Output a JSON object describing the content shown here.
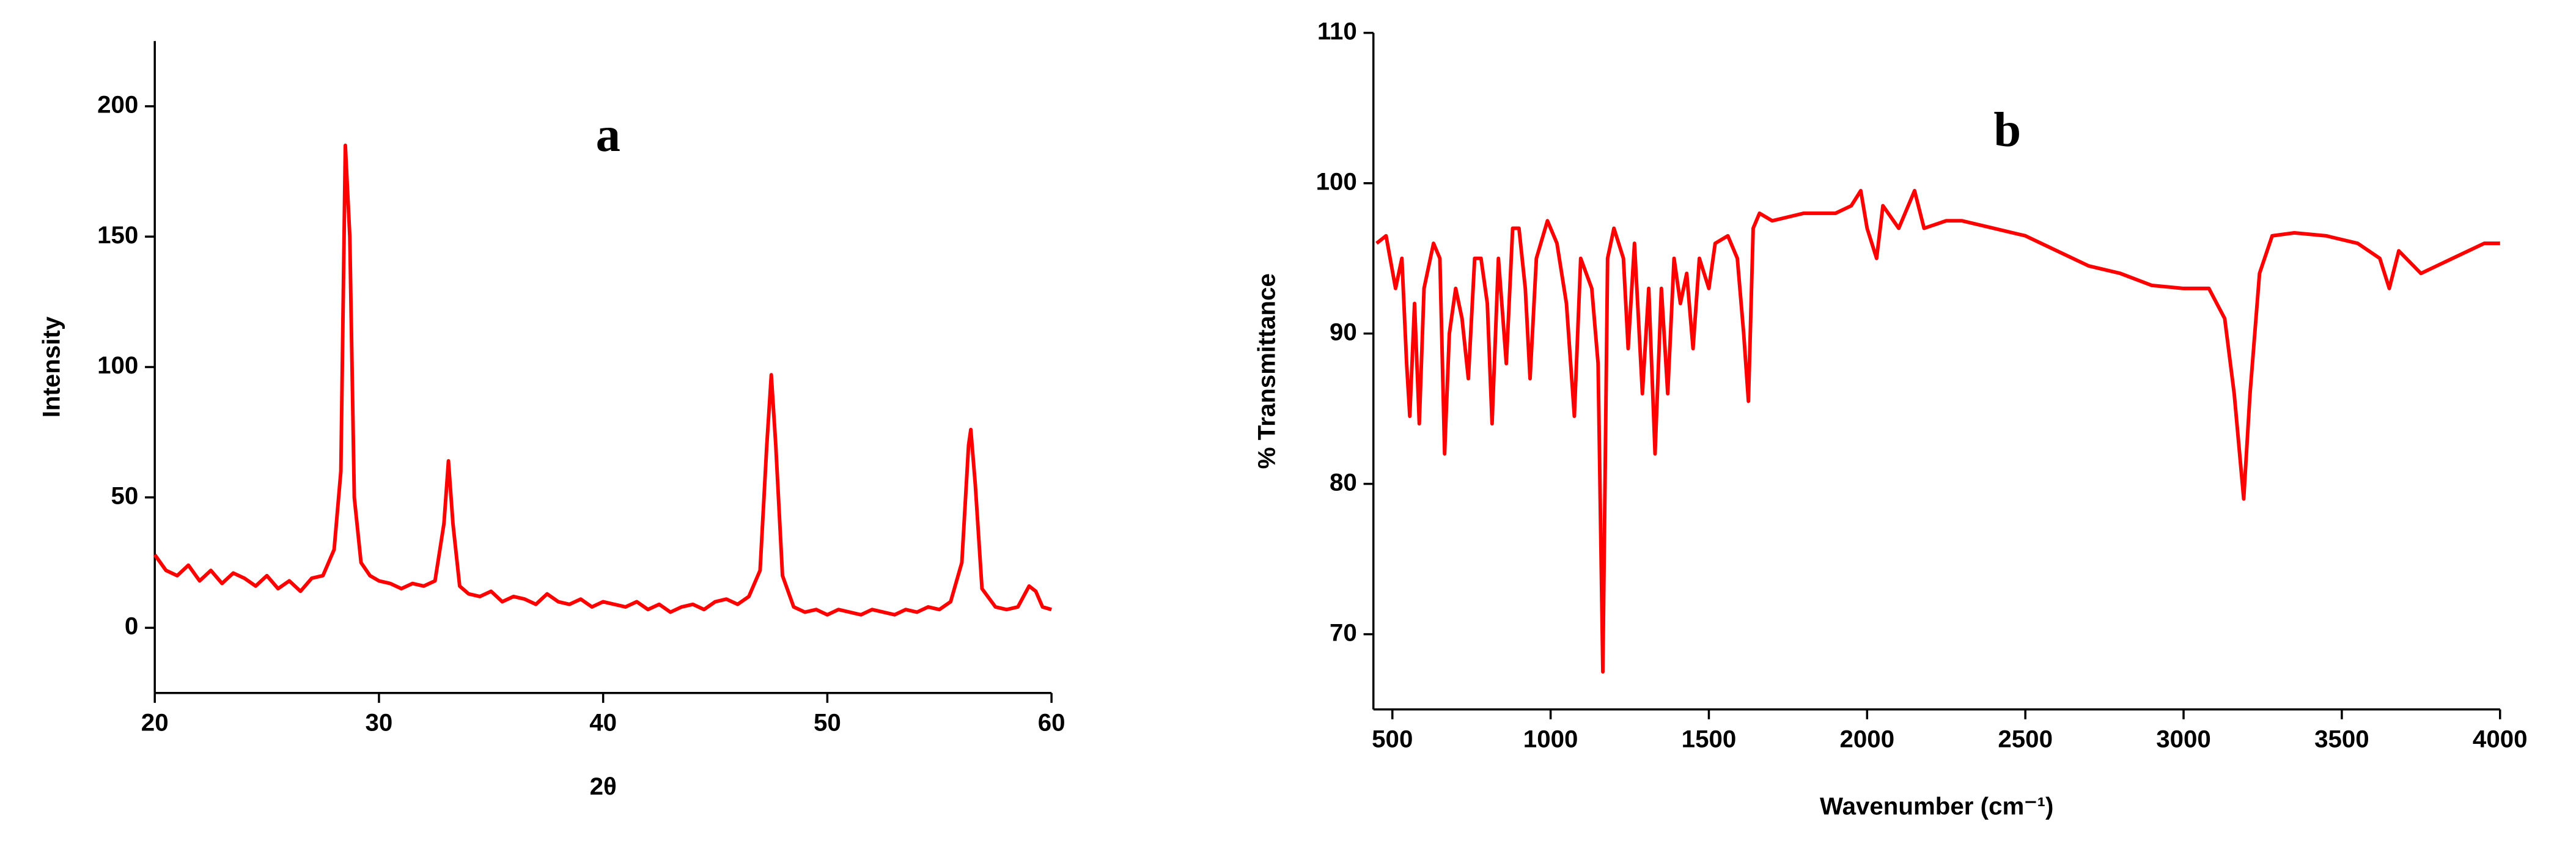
{
  "chart_data": [
    {
      "type": "line",
      "annotation": "a",
      "x_label": "2θ",
      "y_label": "Intensity",
      "xlim": [
        20,
        60
      ],
      "ylim": [
        -25,
        225
      ],
      "xticks": [
        20,
        30,
        40,
        50,
        60
      ],
      "yticks": [
        0,
        50,
        100,
        150,
        200
      ],
      "grid": false,
      "x": [
        20,
        20.5,
        21,
        21.5,
        22,
        22.5,
        23,
        23.5,
        24,
        24.5,
        25,
        25.5,
        26,
        26.5,
        27,
        27.5,
        28,
        28.3,
        28.5,
        28.7,
        28.9,
        29.2,
        29.6,
        30,
        30.5,
        31,
        31.5,
        32,
        32.5,
        32.9,
        33.1,
        33.3,
        33.6,
        34,
        34.5,
        35,
        35.5,
        36,
        36.5,
        37,
        37.5,
        38,
        38.5,
        39,
        39.5,
        40,
        40.5,
        41,
        41.5,
        42,
        42.5,
        43,
        43.5,
        44,
        44.5,
        45,
        45.5,
        46,
        46.5,
        47,
        47.3,
        47.5,
        47.7,
        48,
        48.5,
        49,
        49.5,
        50,
        50.5,
        51,
        51.5,
        52,
        52.5,
        53,
        53.5,
        54,
        54.5,
        55,
        55.5,
        56,
        56.3,
        56.4,
        56.6,
        56.9,
        57.5,
        58,
        58.5,
        59,
        59.3,
        59.6,
        60
      ],
      "series": [
        {
          "color": "#ff0000",
          "values": [
            28,
            22,
            20,
            24,
            18,
            22,
            17,
            21,
            19,
            16,
            20,
            15,
            18,
            14,
            19,
            20,
            30,
            60,
            185,
            150,
            50,
            25,
            20,
            18,
            17,
            15,
            17,
            16,
            18,
            40,
            64,
            40,
            16,
            13,
            12,
            14,
            10,
            12,
            11,
            9,
            13,
            10,
            9,
            11,
            8,
            10,
            9,
            8,
            10,
            7,
            9,
            6,
            8,
            9,
            7,
            10,
            11,
            9,
            12,
            22,
            70,
            97,
            70,
            20,
            8,
            6,
            7,
            5,
            7,
            6,
            5,
            7,
            6,
            5,
            7,
            6,
            8,
            7,
            10,
            25,
            70,
            76,
            55,
            15,
            8,
            7,
            8,
            16,
            14,
            8,
            7
          ]
        }
      ]
    },
    {
      "type": "line",
      "annotation": "b",
      "x_label": "Wavenumber (cm⁻¹)",
      "y_label": "% Transmittance",
      "xlim": [
        440,
        4000
      ],
      "ylim": [
        65,
        110
      ],
      "xticks": [
        500,
        1000,
        1500,
        2000,
        2500,
        3000,
        3500,
        4000
      ],
      "yticks": [
        70,
        80,
        90,
        100,
        110
      ],
      "grid": false,
      "x": [
        450,
        480,
        510,
        530,
        545,
        555,
        570,
        585,
        600,
        630,
        650,
        665,
        680,
        700,
        720,
        740,
        760,
        780,
        800,
        815,
        835,
        860,
        880,
        900,
        920,
        935,
        955,
        990,
        1020,
        1050,
        1075,
        1095,
        1130,
        1150,
        1165,
        1180,
        1200,
        1230,
        1245,
        1265,
        1290,
        1310,
        1330,
        1350,
        1370,
        1390,
        1410,
        1430,
        1450,
        1470,
        1500,
        1520,
        1560,
        1590,
        1610,
        1625,
        1640,
        1660,
        1700,
        1800,
        1900,
        1950,
        1980,
        2000,
        2030,
        2050,
        2100,
        2150,
        2180,
        2250,
        2300,
        2400,
        2500,
        2600,
        2700,
        2800,
        2900,
        3000,
        3080,
        3130,
        3160,
        3190,
        3210,
        3240,
        3280,
        3350,
        3450,
        3550,
        3620,
        3650,
        3680,
        3750,
        3800,
        3850,
        3900,
        3950,
        4000
      ],
      "series": [
        {
          "color": "#ff0000",
          "values": [
            96,
            96.5,
            93,
            95,
            88,
            84.5,
            92,
            84,
            93,
            96,
            95,
            82,
            90,
            93,
            91,
            87,
            95,
            95,
            92,
            84,
            95,
            88,
            97,
            97,
            93,
            87,
            95,
            97.5,
            96,
            92,
            84.5,
            95,
            93,
            88,
            67.5,
            95,
            97,
            95,
            89,
            96,
            86,
            93,
            82,
            93,
            86,
            95,
            92,
            94,
            89,
            95,
            93,
            96,
            96.5,
            95,
            90,
            85.5,
            97,
            98,
            97.5,
            98,
            98,
            98.5,
            99.5,
            97,
            95,
            98.5,
            97,
            99.5,
            97,
            97.5,
            97.5,
            97,
            96.5,
            95.5,
            94.5,
            94,
            93.2,
            93,
            93,
            91,
            86,
            79,
            86,
            94,
            96.5,
            96.7,
            96.5,
            96,
            95,
            93,
            95.5,
            94,
            94.5,
            95,
            95.5,
            96,
            96
          ]
        }
      ]
    }
  ]
}
